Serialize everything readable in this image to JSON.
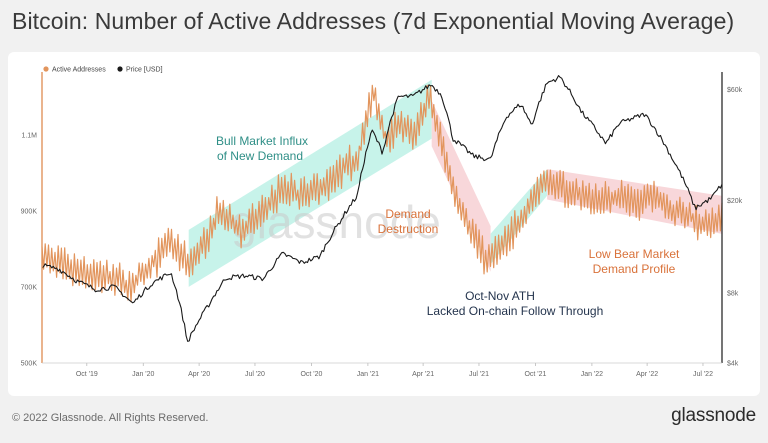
{
  "title": "Bitcoin: Number of Active Addresses (7d Exponential Moving Average)",
  "footer": {
    "copyright": "© 2022 Glassnode. All Rights Reserved.",
    "logo": "glassnode"
  },
  "watermark": "glassnode",
  "colors": {
    "active_addresses": "#e2955d",
    "price": "#1a1a1a",
    "bull_band": "#bdf1e6",
    "bear_band": "#f7d0d3",
    "label_teal": "#2f8f87",
    "label_orange": "#d9723a",
    "label_navy": "#24344d"
  },
  "annotations": {
    "bull": [
      "Bull Market Influx",
      "of New Demand"
    ],
    "destruction": [
      "Demand",
      "Destruction"
    ],
    "ath": [
      "Oct-Nov ATH",
      "Lacked On-chain Follow Through"
    ],
    "bear": [
      "Low Bear Market",
      "Demand Profile"
    ]
  },
  "chart_data": {
    "type": "line",
    "title": "Bitcoin: Number of Active Addresses (7d Exponential Moving Average)",
    "legend": [
      "Active Addresses",
      "Price [USD]"
    ],
    "x_ticks": [
      "Oct '19",
      "Jan '20",
      "Apr '20",
      "Jul '20",
      "Oct '20",
      "Jan '21",
      "Apr '21",
      "Jul '21",
      "Oct '21",
      "Jan '22",
      "Apr '22",
      "Jul '22"
    ],
    "x_range": [
      "2019-07-20",
      "2022-08-01"
    ],
    "left_axis": {
      "label": "Active Addresses",
      "ticks": [
        "1.1M",
        "900K",
        "700K",
        "500K"
      ],
      "tick_values": [
        1100000,
        900000,
        700000,
        500000
      ],
      "range": [
        500000,
        1260000
      ]
    },
    "right_axis": {
      "label": "Price [USD]",
      "scale": "log",
      "ticks": [
        "$60k",
        "$20k",
        "$8k",
        "$4k"
      ],
      "tick_values": [
        60000,
        20000,
        8000,
        4000
      ],
      "range": [
        4000,
        70000
      ]
    },
    "series": [
      {
        "name": "Active Addresses",
        "axis": "left",
        "points": [
          [
            "2019-07-20",
            780000
          ],
          [
            "2019-08-15",
            760000
          ],
          [
            "2019-09-15",
            740000
          ],
          [
            "2019-10-15",
            730000
          ],
          [
            "2019-11-15",
            720000
          ],
          [
            "2019-12-15",
            700000
          ],
          [
            "2020-01-15",
            760000
          ],
          [
            "2020-02-15",
            820000
          ],
          [
            "2020-03-15",
            760000
          ],
          [
            "2020-04-15",
            820000
          ],
          [
            "2020-05-01",
            900000
          ],
          [
            "2020-05-20",
            870000
          ],
          [
            "2020-06-15",
            850000
          ],
          [
            "2020-07-15",
            900000
          ],
          [
            "2020-08-15",
            960000
          ],
          [
            "2020-09-15",
            940000
          ],
          [
            "2020-10-15",
            960000
          ],
          [
            "2020-11-15",
            1000000
          ],
          [
            "2020-12-15",
            1040000
          ],
          [
            "2021-01-10",
            1210000
          ],
          [
            "2021-02-01",
            1080000
          ],
          [
            "2021-02-20",
            1140000
          ],
          [
            "2021-03-15",
            1090000
          ],
          [
            "2021-04-10",
            1200000
          ],
          [
            "2021-05-01",
            1080000
          ],
          [
            "2021-05-20",
            960000
          ],
          [
            "2021-06-15",
            860000
          ],
          [
            "2021-07-15",
            770000
          ],
          [
            "2021-08-15",
            820000
          ],
          [
            "2021-09-15",
            900000
          ],
          [
            "2021-10-15",
            980000
          ],
          [
            "2021-11-15",
            960000
          ],
          [
            "2021-12-15",
            940000
          ],
          [
            "2022-01-15",
            930000
          ],
          [
            "2022-02-15",
            940000
          ],
          [
            "2022-03-15",
            920000
          ],
          [
            "2022-04-15",
            940000
          ],
          [
            "2022-05-15",
            900000
          ],
          [
            "2022-06-15",
            880000
          ],
          [
            "2022-07-15",
            860000
          ],
          [
            "2022-08-01",
            880000
          ]
        ]
      },
      {
        "name": "Price [USD]",
        "axis": "right",
        "points": [
          [
            "2019-07-20",
            10500
          ],
          [
            "2019-08-15",
            10200
          ],
          [
            "2019-09-15",
            9000
          ],
          [
            "2019-10-15",
            8300
          ],
          [
            "2019-11-15",
            8500
          ],
          [
            "2019-12-15",
            7200
          ],
          [
            "2020-01-15",
            8800
          ],
          [
            "2020-02-15",
            9800
          ],
          [
            "2020-03-13",
            4900
          ],
          [
            "2020-04-15",
            7000
          ],
          [
            "2020-05-15",
            9300
          ],
          [
            "2020-06-15",
            9500
          ],
          [
            "2020-07-15",
            9200
          ],
          [
            "2020-08-15",
            11800
          ],
          [
            "2020-09-15",
            10800
          ],
          [
            "2020-10-15",
            11500
          ],
          [
            "2020-11-15",
            16000
          ],
          [
            "2020-12-15",
            21000
          ],
          [
            "2021-01-08",
            40000
          ],
          [
            "2021-01-25",
            32000
          ],
          [
            "2021-02-20",
            56000
          ],
          [
            "2021-03-15",
            56000
          ],
          [
            "2021-04-14",
            63000
          ],
          [
            "2021-05-01",
            57000
          ],
          [
            "2021-05-19",
            37000
          ],
          [
            "2021-06-22",
            31000
          ],
          [
            "2021-07-20",
            30000
          ],
          [
            "2021-08-15",
            46000
          ],
          [
            "2021-09-07",
            52000
          ],
          [
            "2021-09-25",
            42000
          ],
          [
            "2021-10-20",
            64000
          ],
          [
            "2021-11-10",
            68000
          ],
          [
            "2021-12-15",
            48000
          ],
          [
            "2022-01-24",
            35000
          ],
          [
            "2022-02-15",
            43000
          ],
          [
            "2022-03-28",
            47000
          ],
          [
            "2022-05-10",
            31000
          ],
          [
            "2022-06-18",
            18500
          ],
          [
            "2022-07-15",
            20500
          ],
          [
            "2022-08-01",
            23500
          ]
        ]
      }
    ],
    "bands": [
      {
        "name": "bull",
        "from": "2020-03-15",
        "to": "2021-04-15"
      },
      {
        "name": "destruction",
        "from": "2021-04-15",
        "to": "2021-07-20"
      },
      {
        "name": "ath-rise",
        "from": "2021-07-20",
        "to": "2021-10-20"
      },
      {
        "name": "bear",
        "from": "2021-10-20",
        "to": "2022-07-31"
      }
    ]
  }
}
